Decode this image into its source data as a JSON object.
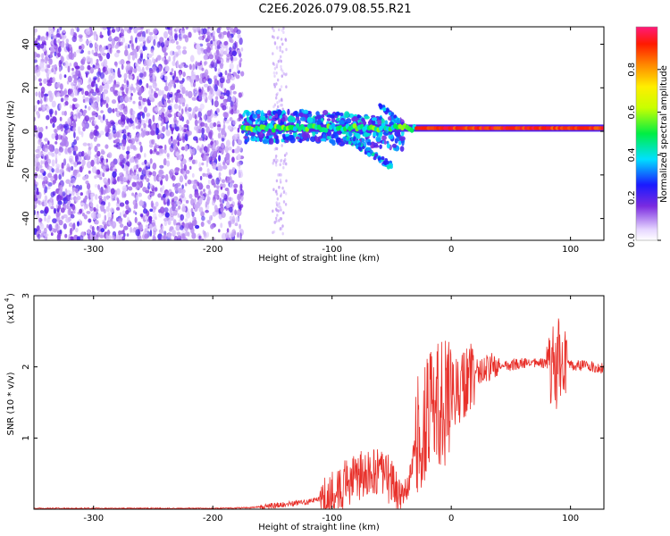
{
  "figure_title": "C2E6.2026.079.08.55.R21",
  "colors": {
    "signal_line": "#e8302a",
    "noise_dots": "#7a2be0",
    "axis": "#000000"
  },
  "chart_data": [
    {
      "type": "heatmap",
      "name": "spectrogram",
      "xlabel": "Height of straight line (km)",
      "ylabel": "Frequency (Hz)",
      "xlim": [
        -350,
        128
      ],
      "ylim": [
        -50,
        48
      ],
      "xticks": [
        -300,
        -200,
        -100,
        0,
        100
      ],
      "yticks": [
        -40,
        -20,
        0,
        20,
        40
      ],
      "colorbar": {
        "label": "Normalized spectral amplitude",
        "range": [
          0.0,
          1.0
        ],
        "ticks": [
          0.0,
          0.2,
          0.4,
          0.6,
          0.8
        ],
        "tick_labels": [
          "0.0",
          "0.2",
          "0.4",
          "0.6",
          "0.8"
        ]
      },
      "features": [
        {
          "name": "broadband noise",
          "x_range": [
            -350,
            -175
          ],
          "freq_range": [
            -50,
            48
          ],
          "amplitude": 0.05
        },
        {
          "name": "carrier tone",
          "x_range": [
            -175,
            128
          ],
          "freq": 1.5,
          "amplitude": 0.95
        },
        {
          "name": "scattered sidebands",
          "x_range": [
            -175,
            -40
          ],
          "freq_range": [
            -18,
            14
          ],
          "amplitude": 0.35
        }
      ]
    },
    {
      "type": "line",
      "name": "snr",
      "xlabel": "Height of straight line (km)",
      "ylabel": "SNR (10 * v/v)",
      "multiplier_label": "(x10",
      "multiplier_exponent": "4",
      "xlim": [
        -350,
        128
      ],
      "ylim": [
        0,
        3.0
      ],
      "xticks": [
        -300,
        -200,
        -100,
        0,
        100
      ],
      "yticks": [
        1,
        2,
        3
      ],
      "series": [
        {
          "name": "SNR",
          "x": [
            -350,
            -200,
            -170,
            -150,
            -120,
            -100,
            -90,
            -80,
            -70,
            -60,
            -50,
            -45,
            -40,
            -35,
            -30,
            -25,
            -20,
            -15,
            -10,
            -5,
            0,
            5,
            10,
            15,
            20,
            25,
            30,
            35,
            40,
            50,
            60,
            70,
            80,
            85,
            88,
            90,
            92,
            95,
            100,
            110,
            120,
            128
          ],
          "values": [
            0.01,
            0.01,
            0.02,
            0.05,
            0.1,
            0.2,
            0.35,
            0.45,
            0.5,
            0.5,
            0.4,
            0.2,
            0.15,
            0.4,
            0.9,
            1.2,
            1.3,
            1.4,
            1.45,
            1.5,
            1.55,
            1.65,
            1.75,
            1.85,
            1.9,
            1.95,
            1.98,
            2.0,
            2.0,
            2.02,
            2.05,
            2.05,
            2.05,
            2.0,
            1.9,
            2.1,
            1.95,
            2.05,
            2.02,
            2.02,
            2.0,
            1.98
          ]
        }
      ]
    }
  ]
}
